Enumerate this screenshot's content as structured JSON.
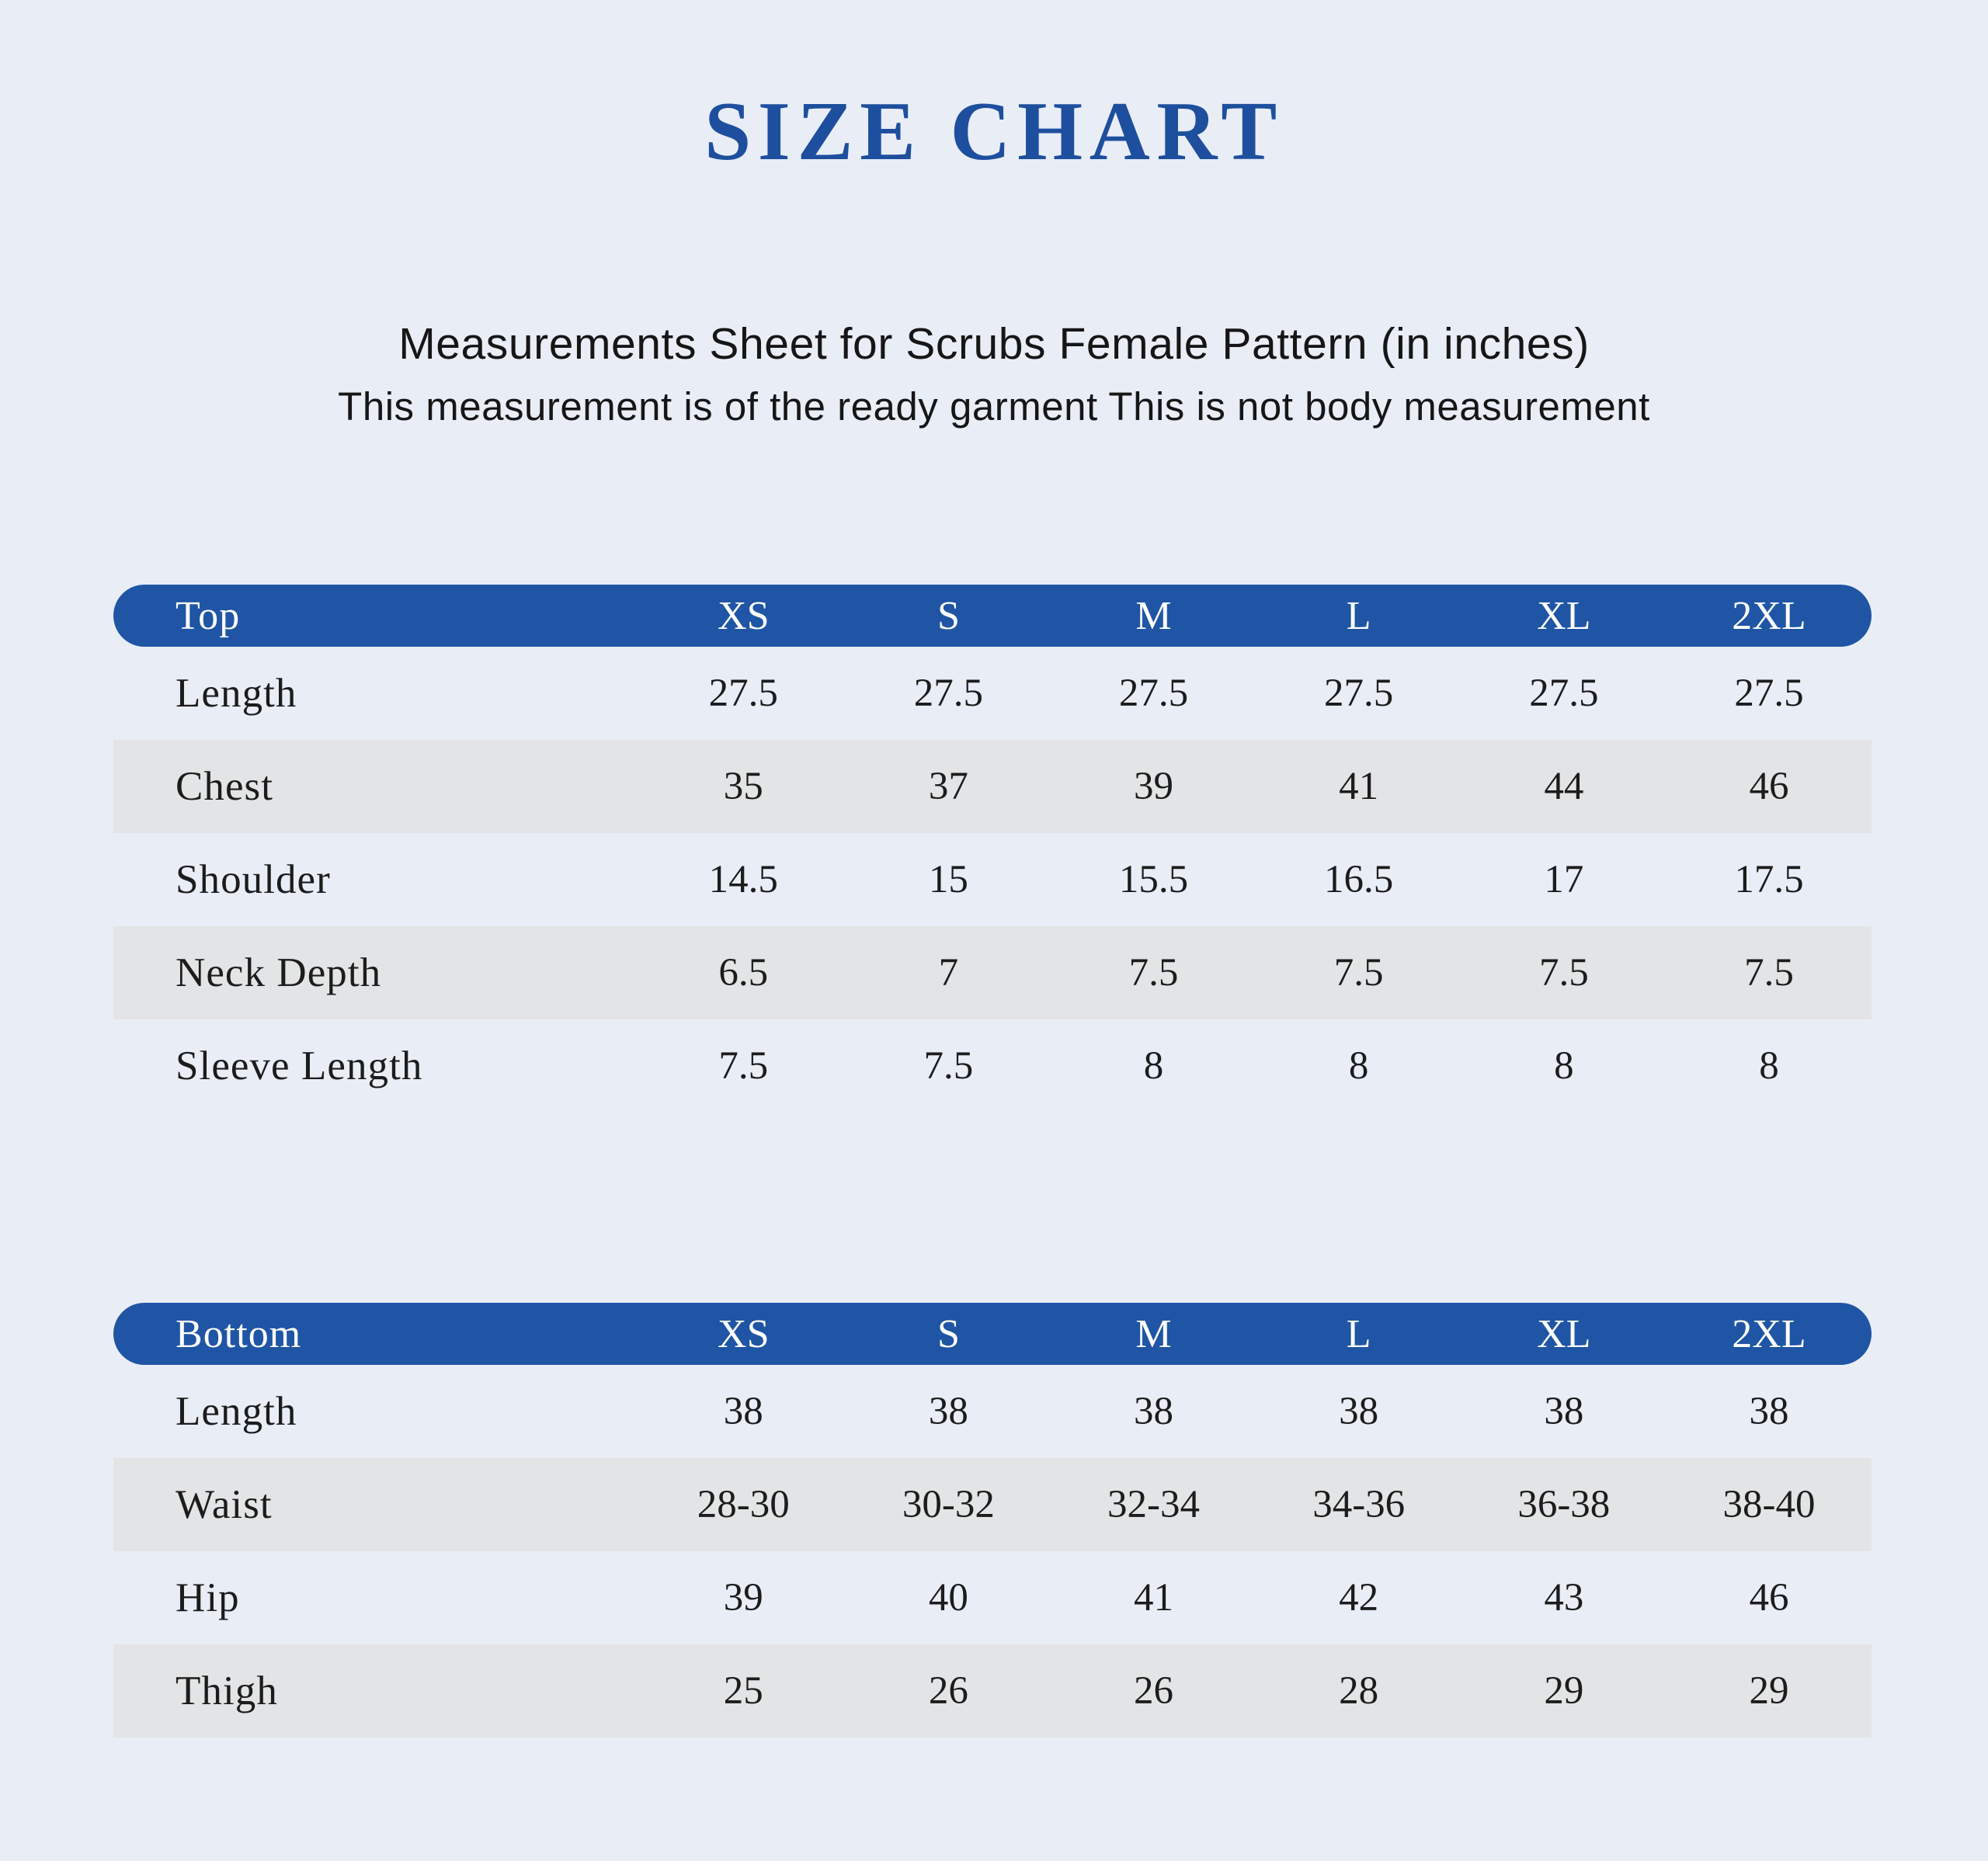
{
  "page": {
    "title": "SIZE CHART",
    "subtitle_line1": "Measurements Sheet for Scrubs Female Pattern (in inches)",
    "subtitle_line2": "This measurement is of the ready garment This is not body measurement"
  },
  "colors": {
    "background": "#e9edf6",
    "title_blue": "#1e4f9e",
    "header_pill_blue": "#1f55a4",
    "stripe_gray": "#e3e4e5",
    "text_dark": "#1c1c1c"
  },
  "tables": [
    {
      "name": "Top",
      "sizes": [
        "XS",
        "S",
        "M",
        "L",
        "XL",
        "2XL"
      ],
      "rows": [
        {
          "label": "Length",
          "values": [
            "27.5",
            "27.5",
            "27.5",
            "27.5",
            "27.5",
            "27.5"
          ]
        },
        {
          "label": "Chest",
          "values": [
            "35",
            "37",
            "39",
            "41",
            "44",
            "46"
          ]
        },
        {
          "label": "Shoulder",
          "values": [
            "14.5",
            "15",
            "15.5",
            "16.5",
            "17",
            "17.5"
          ]
        },
        {
          "label": "Neck Depth",
          "values": [
            "6.5",
            "7",
            "7.5",
            "7.5",
            "7.5",
            "7.5"
          ]
        },
        {
          "label": "Sleeve Length",
          "values": [
            "7.5",
            "7.5",
            "8",
            "8",
            "8",
            "8"
          ]
        }
      ]
    },
    {
      "name": "Bottom",
      "sizes": [
        "XS",
        "S",
        "M",
        "L",
        "XL",
        "2XL"
      ],
      "rows": [
        {
          "label": "Length",
          "values": [
            "38",
            "38",
            "38",
            "38",
            "38",
            "38"
          ]
        },
        {
          "label": "Waist",
          "values": [
            "28-30",
            "30-32",
            "32-34",
            "34-36",
            "36-38",
            "38-40"
          ]
        },
        {
          "label": "Hip",
          "values": [
            "39",
            "40",
            "41",
            "42",
            "43",
            "46"
          ]
        },
        {
          "label": "Thigh",
          "values": [
            "25",
            "26",
            "26",
            "28",
            "29",
            "29"
          ]
        }
      ]
    }
  ]
}
